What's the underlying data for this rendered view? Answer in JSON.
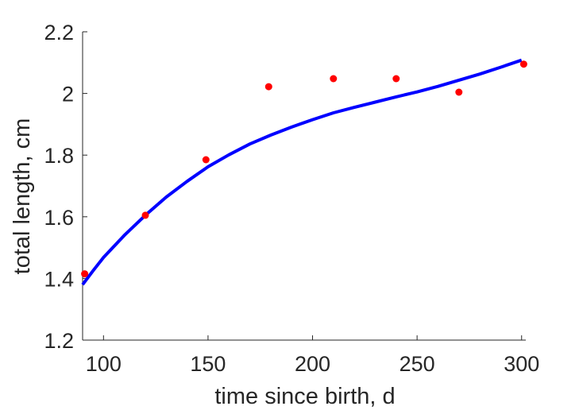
{
  "chart_data": {
    "type": "line",
    "xlabel": "time since birth, d",
    "ylabel": "total length, cm",
    "xlim": [
      90,
      302
    ],
    "ylim": [
      1.2,
      2.2
    ],
    "xticks": [
      100,
      150,
      200,
      250,
      300
    ],
    "yticks": [
      1.2,
      1.4,
      1.6,
      1.8,
      2,
      2.2
    ],
    "xtick_labels": [
      "100",
      "150",
      "200",
      "250",
      "300"
    ],
    "ytick_labels": [
      "1.2",
      "1.4",
      "1.6",
      "1.8",
      "2",
      "2.2"
    ],
    "grid": false,
    "series": [
      {
        "kind": "scatter",
        "color": "#ff0000",
        "points": [
          [
            91,
            1.415
          ],
          [
            120,
            1.605
          ],
          [
            149,
            1.785
          ],
          [
            179,
            2.022
          ],
          [
            210,
            2.048
          ],
          [
            240,
            2.048
          ],
          [
            270,
            2.004
          ],
          [
            301,
            2.095
          ]
        ]
      },
      {
        "kind": "line",
        "color": "#0000ff",
        "points": [
          [
            90,
            1.38
          ],
          [
            95,
            1.425
          ],
          [
            100,
            1.468
          ],
          [
            110,
            1.54
          ],
          [
            120,
            1.605
          ],
          [
            130,
            1.664
          ],
          [
            140,
            1.715
          ],
          [
            150,
            1.762
          ],
          [
            160,
            1.801
          ],
          [
            170,
            1.836
          ],
          [
            180,
            1.865
          ],
          [
            190,
            1.891
          ],
          [
            200,
            1.915
          ],
          [
            210,
            1.937
          ],
          [
            220,
            1.955
          ],
          [
            230,
            1.972
          ],
          [
            240,
            1.989
          ],
          [
            250,
            2.005
          ],
          [
            260,
            2.023
          ],
          [
            270,
            2.043
          ],
          [
            280,
            2.063
          ],
          [
            290,
            2.085
          ],
          [
            300,
            2.108
          ]
        ]
      }
    ]
  }
}
